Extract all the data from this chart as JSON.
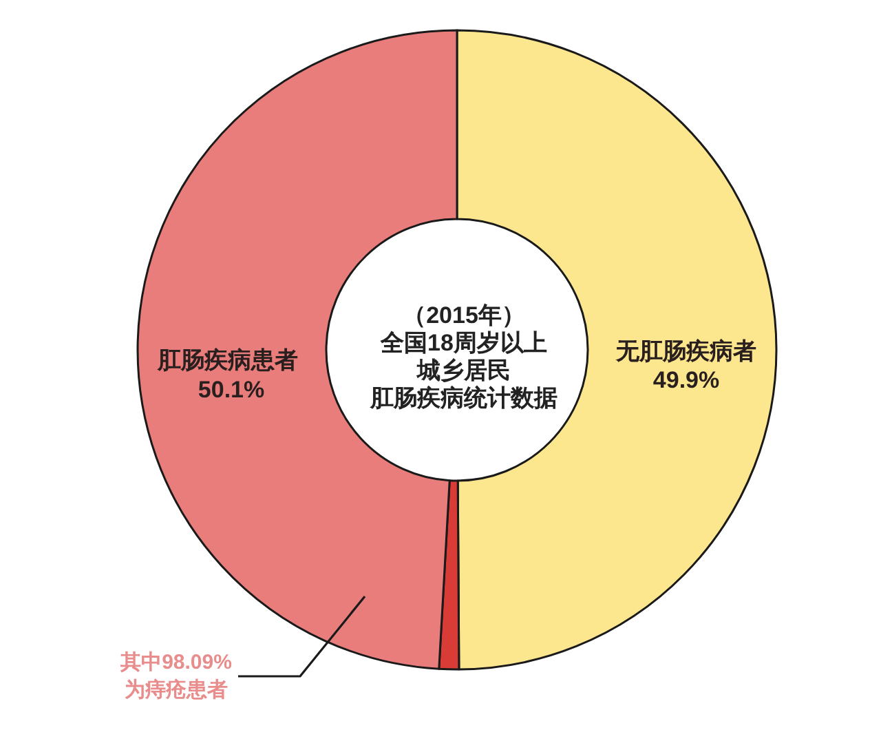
{
  "chart_data": {
    "type": "donut",
    "title": "（2015年）全国18周岁以上城乡居民肛肠疾病统计数据",
    "categories": [
      "无肛肠疾病者",
      null,
      "肛肠疾病患者"
    ],
    "values": [
      49.9,
      1.0,
      49.1
    ],
    "colors": [
      "#fde78e",
      "#d93b37",
      "#e97d7b"
    ],
    "value_labels": [
      "49.9%",
      null,
      null
    ],
    "annotations": [
      "50.1%",
      "其中98.09%为痔疮患者"
    ]
  }
}
